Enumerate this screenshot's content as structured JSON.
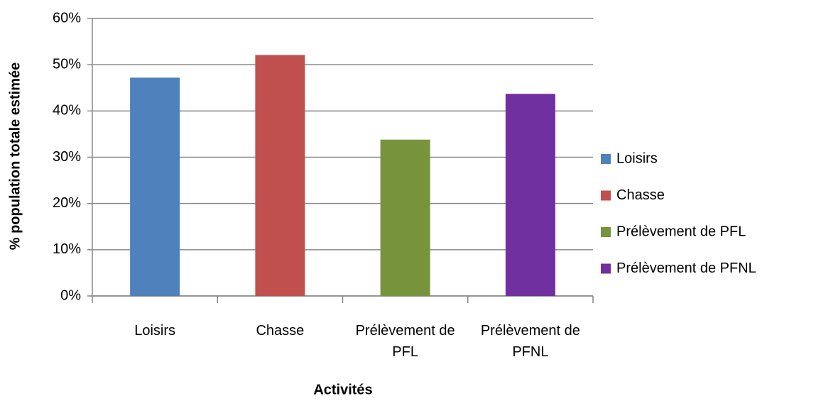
{
  "chart_data": {
    "type": "bar",
    "y_label": "% population totale estimée",
    "x_label": "Activités",
    "categories": [
      "Loisirs",
      "Chasse",
      "Prélèvement de PFL",
      "Prélèvement de PFNL"
    ],
    "values": [
      47.2,
      52.1,
      33.8,
      43.7
    ],
    "colors": [
      "#4f81bd",
      "#c0504d",
      "#77933c",
      "#7030a0"
    ],
    "ylim": [
      0,
      60
    ],
    "yticks": [
      {
        "value": 0,
        "label": "0%"
      },
      {
        "value": 10,
        "label": "10%"
      },
      {
        "value": 20,
        "label": "20%"
      },
      {
        "value": 30,
        "label": "30%"
      },
      {
        "value": 40,
        "label": "40%"
      },
      {
        "value": 50,
        "label": "50%"
      },
      {
        "value": 60,
        "label": "60%"
      }
    ],
    "grid": true,
    "legend": "right"
  }
}
